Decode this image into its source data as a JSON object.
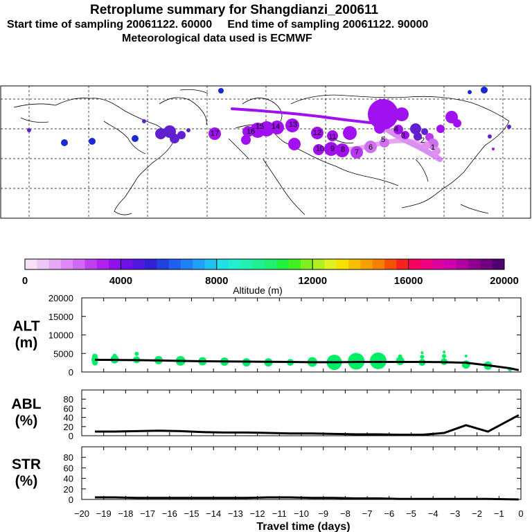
{
  "header": {
    "title": "Retroplume summary for Shangdianzi_200611",
    "subtitle1": "Start time of sampling 20061122. 60000     End time of sampling 20061122. 90000",
    "subtitle2": "Meteorological data used is ECMWF"
  },
  "colors": {
    "purple": "#a010f0",
    "violet": "#b838f0",
    "lilac": "#d070f0",
    "pink": "#e090f0",
    "blue": "#1a2ad0",
    "darkviolet": "#6020d0",
    "green": "#00ee66",
    "line": "#000000"
  },
  "map": {
    "labels": [
      "17",
      "16",
      "15",
      "14",
      "13",
      "12",
      "11",
      "10",
      "9",
      "8",
      "7",
      "6",
      "5",
      "4",
      "3",
      "2",
      "1"
    ]
  },
  "colorbar": {
    "ticks": [
      "0",
      "4000",
      "8000",
      "12000",
      "16000",
      "20000"
    ],
    "label": "Altitude (m)",
    "colors": [
      "#f8e0f8",
      "#f0c8f8",
      "#e8a8f8",
      "#e088f8",
      "#d068f8",
      "#c040f0",
      "#b020f0",
      "#9010f0",
      "#7010e8",
      "#5018e0",
      "#3020d8",
      "#2040e0",
      "#2060f0",
      "#2080f8",
      "#20a0f8",
      "#20c0f0",
      "#20e0e8",
      "#20f0d0",
      "#20f0b0",
      "#20f090",
      "#20f070",
      "#20f040",
      "#40f020",
      "#80f020",
      "#b0f020",
      "#e0f020",
      "#f8e000",
      "#f8c000",
      "#f8a000",
      "#f88000",
      "#f85000",
      "#f82020",
      "#f80060",
      "#f00080",
      "#e000a0",
      "#d000b0",
      "#b000a0",
      "#900090",
      "#700080",
      "#500070"
    ]
  },
  "chart_data": [
    {
      "type": "line",
      "name": "ALT",
      "panel_label_1": "ALT",
      "panel_label_2": "(m)",
      "ylim": [
        0,
        20000
      ],
      "yticks": [
        "20000",
        "15000",
        "10000",
        "5000",
        "0"
      ],
      "x": [
        -19.4,
        -18.5,
        -17.5,
        -16.5,
        -15.5,
        -14.5,
        -13.5,
        -12.5,
        -11.5,
        -10.5,
        -9.5,
        -8.5,
        -7.5,
        -6.5,
        -5.5,
        -4.5,
        -3.5,
        -2.5,
        -1.5,
        -0.5,
        -0.1
      ],
      "values": [
        3300,
        3250,
        3200,
        3100,
        3000,
        2900,
        2850,
        2800,
        2750,
        2700,
        2650,
        2650,
        2700,
        2700,
        2700,
        2700,
        2650,
        2500,
        1800,
        1000,
        500
      ],
      "scatter": [
        {
          "x": -19.4,
          "y": 3300,
          "s": 5
        },
        {
          "x": -19.4,
          "y": 4200,
          "s": 4
        },
        {
          "x": -19.4,
          "y": 2500,
          "s": 4
        },
        {
          "x": -18.5,
          "y": 3400,
          "s": 6
        },
        {
          "x": -18.5,
          "y": 4400,
          "s": 3
        },
        {
          "x": -17.5,
          "y": 3300,
          "s": 5
        },
        {
          "x": -17.5,
          "y": 4900,
          "s": 3
        },
        {
          "x": -16.5,
          "y": 3200,
          "s": 6
        },
        {
          "x": -15.5,
          "y": 3000,
          "s": 7
        },
        {
          "x": -14.5,
          "y": 2900,
          "s": 6
        },
        {
          "x": -13.5,
          "y": 2800,
          "s": 6
        },
        {
          "x": -12.5,
          "y": 2600,
          "s": 6
        },
        {
          "x": -11.5,
          "y": 2600,
          "s": 6
        },
        {
          "x": -10.5,
          "y": 2600,
          "s": 5
        },
        {
          "x": -9.5,
          "y": 2700,
          "s": 7
        },
        {
          "x": -8.5,
          "y": 2600,
          "s": 11
        },
        {
          "x": -7.5,
          "y": 2900,
          "s": 12
        },
        {
          "x": -6.5,
          "y": 3000,
          "s": 12
        },
        {
          "x": -5.5,
          "y": 3000,
          "s": 6
        },
        {
          "x": -5.5,
          "y": 4200,
          "s": 3
        },
        {
          "x": -4.5,
          "y": 2600,
          "s": 5
        },
        {
          "x": -4.5,
          "y": 4100,
          "s": 3
        },
        {
          "x": -4.5,
          "y": 5200,
          "s": 2
        },
        {
          "x": -3.5,
          "y": 2800,
          "s": 5
        },
        {
          "x": -3.5,
          "y": 4300,
          "s": 3
        },
        {
          "x": -3.5,
          "y": 5400,
          "s": 2
        },
        {
          "x": -2.5,
          "y": 2000,
          "s": 6
        },
        {
          "x": -2.5,
          "y": 4300,
          "s": 2
        },
        {
          "x": -1.5,
          "y": 1700,
          "s": 6
        },
        {
          "x": -0.5,
          "y": 700,
          "s": 3
        }
      ]
    },
    {
      "type": "line",
      "name": "ABL",
      "panel_label_1": "ABL",
      "panel_label_2": "(%)",
      "ylim": [
        0,
        100
      ],
      "yticks": [
        "80",
        "60",
        "40",
        "20",
        "0"
      ],
      "x": [
        -19.4,
        -18.5,
        -17.5,
        -16.5,
        -15.5,
        -14.5,
        -13.5,
        -12.5,
        -11.5,
        -10.5,
        -9.5,
        -8.5,
        -7.5,
        -6.5,
        -5.5,
        -4.5,
        -3.5,
        -2.5,
        -1.5,
        -0.1
      ],
      "values": [
        9,
        9,
        10,
        11,
        10,
        8,
        7,
        7,
        6,
        5,
        5,
        4,
        3,
        3,
        2,
        2,
        6,
        23,
        9,
        45
      ]
    },
    {
      "type": "line",
      "name": "STR",
      "panel_label_1": "STR",
      "panel_label_2": "(%)",
      "ylim": [
        0,
        100
      ],
      "yticks": [
        "80",
        "60",
        "40",
        "20",
        "0"
      ],
      "x": [
        -19.4,
        -18.5,
        -17.5,
        -16.5,
        -15.5,
        -14.5,
        -13.5,
        -12.5,
        -11.5,
        -10.5,
        -9.5,
        -8.5,
        -7.5,
        -6.5,
        -5.5,
        -4.5,
        -3.5,
        -2.5,
        -1.5,
        -0.1
      ],
      "values": [
        4,
        4,
        3,
        3,
        3,
        3,
        3,
        3,
        4,
        4,
        3,
        3,
        2,
        2,
        1,
        1,
        1,
        1,
        1,
        0
      ]
    }
  ],
  "xaxis": {
    "xlim": [
      -20,
      0
    ],
    "ticks": [
      "−20",
      "−19",
      "−18",
      "−17",
      "−16",
      "−15",
      "−14",
      "−13",
      "−12",
      "−11",
      "−10",
      "−9",
      "−8",
      "−7",
      "−6",
      "−5",
      "−4",
      "−3",
      "−2",
      "−1",
      "0"
    ],
    "label": "Travel time (days)"
  }
}
